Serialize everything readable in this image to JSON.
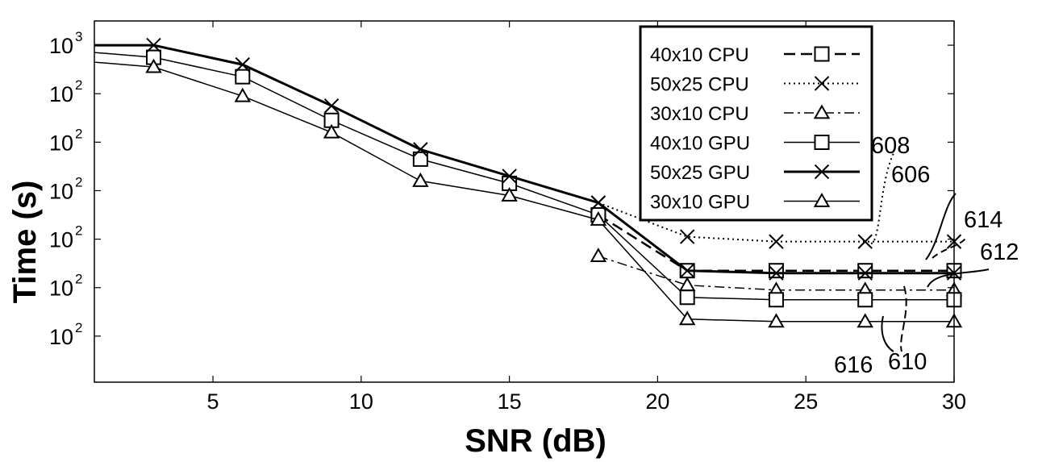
{
  "chart_data": {
    "type": "line",
    "title": "",
    "xlabel": "SNR (dB)",
    "ylabel": "Time (s)",
    "xlim": [
      1,
      30
    ],
    "ylim": [
      0,
      7
    ],
    "x_ticks": [
      5,
      10,
      15,
      20,
      25,
      30
    ],
    "y_tick_labels": [
      {
        "base": "10",
        "sup": "3",
        "y": 6
      },
      {
        "base": "10",
        "sup": "2",
        "y": 5
      },
      {
        "base": "10",
        "sup": "2",
        "y": 4
      },
      {
        "base": "10",
        "sup": "2",
        "y": 3
      },
      {
        "base": "10",
        "sup": "2",
        "y": 2
      },
      {
        "base": "10",
        "sup": "2",
        "y": 1
      },
      {
        "base": "10",
        "sup": "2",
        "y": 0
      }
    ],
    "grid": false,
    "legend_position": "top-right",
    "series": [
      {
        "name": "40x10 CPU",
        "style": "dashed",
        "marker": "square",
        "width": 2.5,
        "points": [
          [
            18,
            2.5
          ],
          [
            21,
            1.35
          ],
          [
            24,
            1.35
          ],
          [
            27,
            1.35
          ],
          [
            30,
            1.35
          ]
        ]
      },
      {
        "name": "50x25 CPU",
        "style": "dotted",
        "marker": "x",
        "width": 2,
        "points": [
          [
            18,
            2.75
          ],
          [
            21,
            2.05
          ],
          [
            24,
            1.95
          ],
          [
            27,
            1.95
          ],
          [
            30,
            1.95
          ]
        ]
      },
      {
        "name": "30x10 CPU",
        "style": "dashdot",
        "marker": "triangle",
        "width": 1.5,
        "points": [
          [
            18,
            1.65
          ],
          [
            21,
            1.05
          ],
          [
            24,
            0.95
          ],
          [
            27,
            0.95
          ],
          [
            30,
            0.95
          ]
        ]
      },
      {
        "name": "40x10 GPU",
        "style": "solid",
        "marker": "square",
        "width": 1.5,
        "points": [
          [
            1,
            5.85
          ],
          [
            3,
            5.75
          ],
          [
            6,
            5.35
          ],
          [
            9,
            4.45
          ],
          [
            12,
            3.65
          ],
          [
            15,
            3.15
          ],
          [
            18,
            2.5
          ],
          [
            21,
            0.8
          ],
          [
            24,
            0.75
          ],
          [
            27,
            0.75
          ],
          [
            30,
            0.75
          ]
        ]
      },
      {
        "name": "50x25 GPU",
        "style": "solid",
        "marker": "x",
        "width": 3,
        "points": [
          [
            1,
            6.0
          ],
          [
            3,
            6.0
          ],
          [
            6,
            5.6
          ],
          [
            9,
            4.75
          ],
          [
            12,
            3.85
          ],
          [
            15,
            3.3
          ],
          [
            18,
            2.75
          ],
          [
            21,
            1.35
          ],
          [
            24,
            1.3
          ],
          [
            27,
            1.3
          ],
          [
            30,
            1.3
          ]
        ]
      },
      {
        "name": "30x10 GPU",
        "style": "solid",
        "marker": "triangle",
        "width": 1.5,
        "points": [
          [
            1,
            5.65
          ],
          [
            3,
            5.55
          ],
          [
            6,
            4.95
          ],
          [
            9,
            4.2
          ],
          [
            12,
            3.2
          ],
          [
            15,
            2.9
          ],
          [
            18,
            2.4
          ],
          [
            21,
            0.35
          ],
          [
            24,
            0.3
          ],
          [
            27,
            0.3
          ],
          [
            30,
            0.3
          ]
        ]
      }
    ],
    "callouts": [
      "608",
      "606",
      "614",
      "612",
      "616",
      "610"
    ]
  }
}
